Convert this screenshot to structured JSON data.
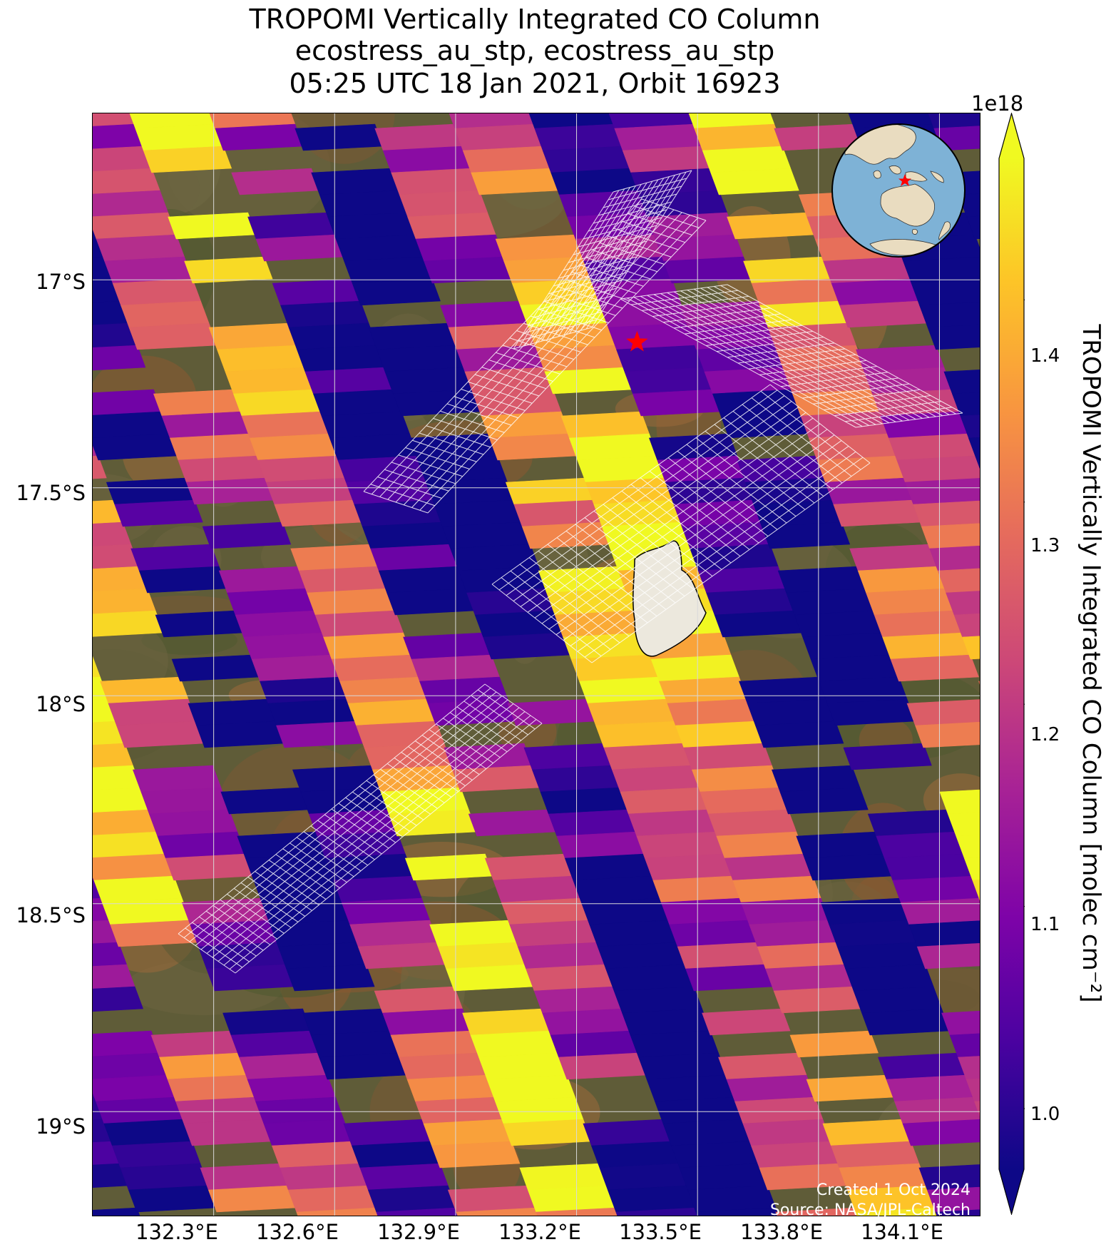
{
  "title": {
    "line1": "TROPOMI Vertically Integrated CO Column",
    "line2": "ecostress_au_stp, ecostress_au_stp",
    "line3": "05:25 UTC 18 Jan 2021, Orbit 16923"
  },
  "axes": {
    "lat_labels": [
      "17°S",
      "17.5°S",
      "18°S",
      "18.5°S",
      "19°S"
    ],
    "lat_values": [
      -17.0,
      -17.5,
      -18.0,
      -18.5,
      -19.0
    ],
    "lon_labels": [
      "132.3°E",
      "132.6°E",
      "132.9°E",
      "133.2°E",
      "133.5°E",
      "133.8°E",
      "134.1°E"
    ],
    "lon_values": [
      132.3,
      132.6,
      132.9,
      133.2,
      133.5,
      133.8,
      134.1
    ],
    "lon_range": [
      132.0,
      134.2
    ],
    "lat_range": [
      -19.25,
      -16.6
    ],
    "grid": true
  },
  "colorbar": {
    "label": "TROPOMI Vertically Integrated CO Column [molec cm⁻²]",
    "exponent": "1e18",
    "ticks": [
      "1.0",
      "1.1",
      "1.2",
      "1.3",
      "1.4"
    ],
    "tick_values": [
      1.0,
      1.1,
      1.2,
      1.3,
      1.4
    ],
    "vmin": 0.97,
    "vmax": 1.47,
    "colormap": "plasma",
    "extend": "both"
  },
  "marker": {
    "symbol": "star",
    "color": "#ff0000",
    "lon": 133.35,
    "lat": -17.15
  },
  "credits": {
    "created": "Created 1 Oct 2024",
    "source": "Source: NASA/JPL-Caltech"
  },
  "inset": {
    "type": "globe",
    "ocean_color": "#7eb2d6",
    "land_color": "#e9dcc0",
    "marker_color": "#ff0000"
  },
  "colors": {
    "grid": "#d8d8d8",
    "swath_grid": "#ffffff",
    "lake_outline": "#000000"
  }
}
